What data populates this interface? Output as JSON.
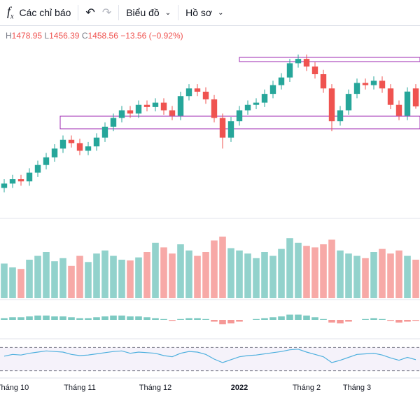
{
  "toolbar": {
    "indicators": "Các chỉ báo",
    "chart": "Biểu đồ",
    "profile": "Hồ sơ"
  },
  "chart_data": {
    "type": "candlestick",
    "legend": {
      "high_label": "H",
      "low_label": "L",
      "close_label": "C",
      "change": {
        "value": -13.56,
        "label": "−13.56"
      },
      "change_pct": {
        "value": -0.92,
        "label": "(−0.92%)"
      }
    },
    "categories": [
      null,
      "Tháng 10",
      null,
      null,
      null,
      null,
      null,
      null,
      null,
      "Tháng 11",
      null,
      null,
      null,
      null,
      null,
      null,
      null,
      null,
      "Tháng 12",
      null,
      null,
      null,
      null,
      null,
      null,
      null,
      null,
      null,
      "2022",
      null,
      null,
      null,
      null,
      null,
      null,
      null,
      "Tháng 2",
      null,
      null,
      null,
      null,
      null,
      "Tháng 3",
      null,
      null,
      null,
      null,
      null,
      null,
      null
    ],
    "open": [
      1384,
      1388,
      1392,
      1390,
      1398,
      1405,
      1412,
      1420,
      1428,
      1425,
      1418,
      1422,
      1430,
      1440,
      1448,
      1455,
      1452,
      1460,
      1458,
      1462,
      1455,
      1450,
      1468,
      1475,
      1472,
      1465,
      1448,
      1430,
      1445,
      1455,
      1460,
      1462,
      1470,
      1478,
      1485,
      1498,
      1502,
      1495,
      1488,
      1475,
      1445,
      1455,
      1470,
      1480,
      1478,
      1482,
      1475,
      1460,
      1450,
      1475
    ],
    "high": [
      1392,
      1396,
      1396,
      1402,
      1409,
      1416,
      1424,
      1432,
      1432,
      1429,
      1426,
      1434,
      1444,
      1452,
      1459,
      1459,
      1464,
      1464,
      1466,
      1466,
      1459,
      1472,
      1479,
      1479,
      1476,
      1469,
      1452,
      1449,
      1459,
      1464,
      1466,
      1474,
      1482,
      1489,
      1502,
      1506,
      1506,
      1499,
      1492,
      1479,
      1459,
      1474,
      1484,
      1484,
      1486,
      1486,
      1479,
      1464,
      1476,
      1478.95
    ],
    "low": [
      1380,
      1384,
      1386,
      1386,
      1394,
      1401,
      1408,
      1416,
      1421,
      1414,
      1414,
      1418,
      1426,
      1436,
      1444,
      1448,
      1448,
      1454,
      1454,
      1451,
      1446,
      1446,
      1464,
      1468,
      1461,
      1444,
      1420,
      1426,
      1441,
      1451,
      1456,
      1458,
      1466,
      1474,
      1481,
      1494,
      1491,
      1484,
      1471,
      1436,
      1441,
      1451,
      1466,
      1474,
      1474,
      1471,
      1456,
      1446,
      1446,
      1456.39
    ],
    "close": [
      1388,
      1392,
      1390,
      1398,
      1405,
      1412,
      1420,
      1428,
      1425,
      1418,
      1422,
      1430,
      1440,
      1448,
      1455,
      1452,
      1460,
      1458,
      1462,
      1455,
      1450,
      1468,
      1475,
      1472,
      1465,
      1448,
      1430,
      1445,
      1455,
      1460,
      1462,
      1470,
      1478,
      1485,
      1498,
      1502,
      1495,
      1488,
      1475,
      1445,
      1455,
      1470,
      1480,
      1478,
      1482,
      1475,
      1460,
      1450,
      1472.12,
      1458.56
    ],
    "ylim": [
      1360,
      1520
    ],
    "up_color": "#26a69a",
    "down_color": "#ef5350",
    "volume": {
      "values": [
        45,
        40,
        38,
        50,
        55,
        60,
        48,
        52,
        42,
        55,
        47,
        58,
        62,
        55,
        50,
        49,
        53,
        60,
        72,
        66,
        58,
        70,
        62,
        55,
        60,
        75,
        80,
        65,
        62,
        58,
        52,
        60,
        55,
        64,
        78,
        72,
        68,
        66,
        70,
        76,
        62,
        58,
        55,
        52,
        60,
        64,
        58,
        62,
        55,
        50
      ],
      "ylim": [
        0,
        100
      ]
    },
    "macd": {
      "values": [
        2,
        3,
        3,
        4,
        5,
        5,
        4,
        4,
        3,
        2,
        2,
        3,
        4,
        5,
        5,
        4,
        4,
        3,
        2,
        1,
        -1,
        1,
        2,
        2,
        1,
        -2,
        -5,
        -4,
        -2,
        0,
        1,
        2,
        3,
        4,
        6,
        6,
        5,
        3,
        1,
        -3,
        -4,
        -2,
        0,
        1,
        2,
        1,
        -1,
        -3,
        -2,
        -1
      ],
      "ylim": [
        -20,
        20
      ]
    },
    "rsi": {
      "values": [
        55,
        58,
        57,
        60,
        62,
        64,
        63,
        62,
        58,
        56,
        57,
        59,
        61,
        63,
        64,
        60,
        62,
        61,
        60,
        56,
        54,
        60,
        63,
        62,
        58,
        50,
        44,
        49,
        54,
        56,
        57,
        59,
        61,
        63,
        66,
        67,
        62,
        58,
        54,
        44,
        48,
        53,
        58,
        59,
        60,
        57,
        52,
        48,
        53,
        49
      ],
      "ylim": [
        20,
        80
      ],
      "levels": [
        70,
        30
      ],
      "color": "#4fb0de"
    }
  }
}
